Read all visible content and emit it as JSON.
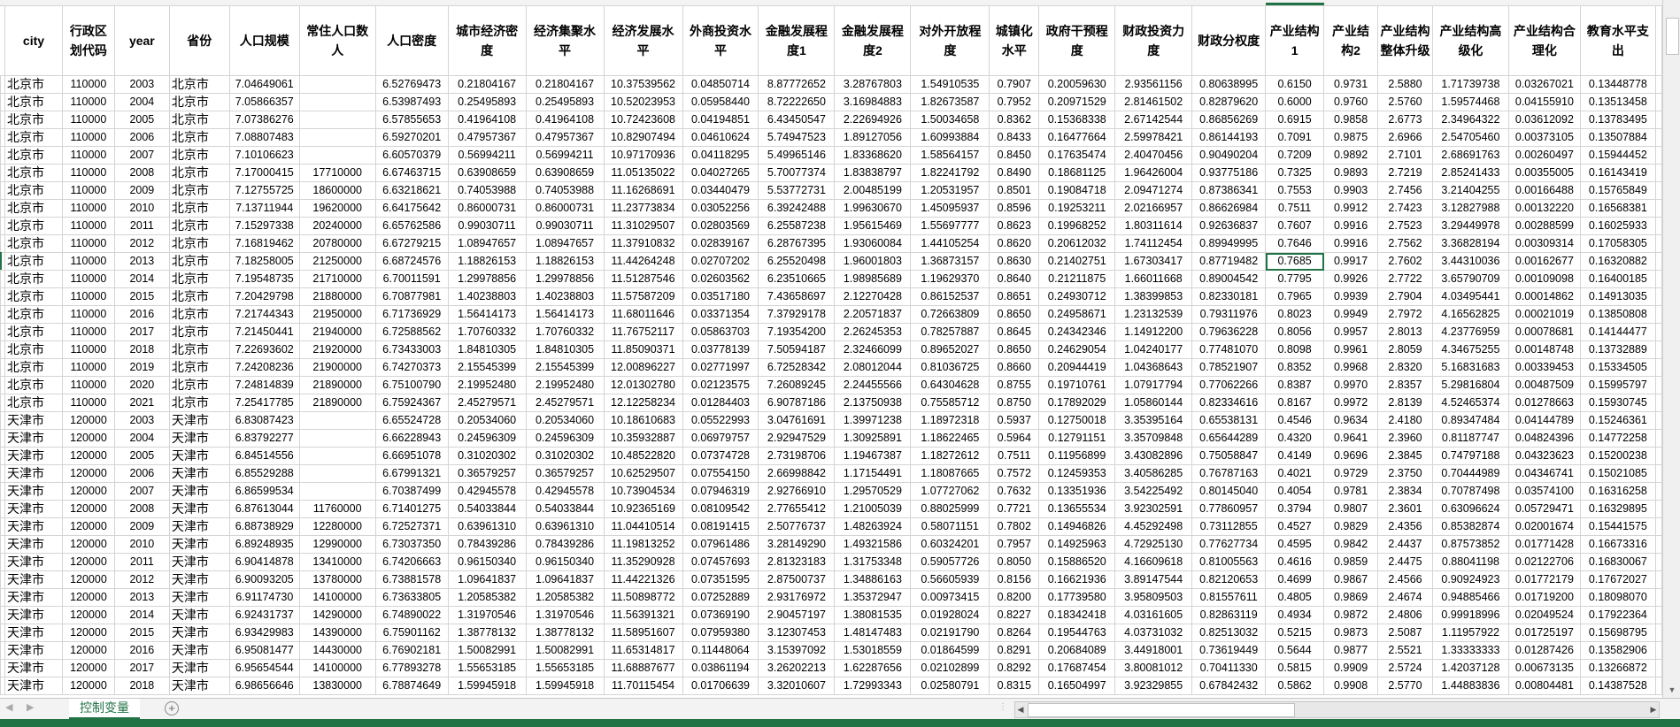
{
  "sheet_tab": "控制变量",
  "add_sheet": "+",
  "selected_cell": {
    "row": 10,
    "col": 18
  },
  "colors": {
    "accent": "#217346",
    "gridline": "#d4d4d4"
  },
  "headers": [
    "city",
    "行政区划代码",
    "year",
    "省份",
    "人口规模",
    "常住人口数人",
    "人口密度",
    "城市经济密度",
    "经济集聚水平",
    "经济发展水平",
    "外商投资水平",
    "金融发展程度1",
    "金融发展程度2",
    "对外开放程度",
    "城镇化水平",
    "政府干预程度",
    "财政投资力度",
    "财政分权度",
    "产业结构1",
    "产业结构2",
    "产业结构整体升级",
    "产业结构高级化",
    "产业结构合理化",
    "教育水平支出"
  ],
  "rows": [
    [
      "北京市",
      "110000",
      "2003",
      "北京市",
      "7.04649061",
      "",
      "6.52769473",
      "0.21804167",
      "0.21804167",
      "10.37539562",
      "0.04850714",
      "8.87772652",
      "3.28767803",
      "1.54910535",
      "0.7907",
      "0.20059630",
      "2.93561156",
      "0.80638995",
      "0.6150",
      "0.9731",
      "2.5880",
      "1.71739738",
      "0.03267021",
      "0.13448778"
    ],
    [
      "北京市",
      "110000",
      "2004",
      "北京市",
      "7.05866357",
      "",
      "6.53987493",
      "0.25495893",
      "0.25495893",
      "10.52023953",
      "0.05958440",
      "8.72222650",
      "3.16984883",
      "1.82673587",
      "0.7952",
      "0.20971529",
      "2.81461502",
      "0.82879620",
      "0.6000",
      "0.9760",
      "2.5760",
      "1.59574468",
      "0.04155910",
      "0.13513458"
    ],
    [
      "北京市",
      "110000",
      "2005",
      "北京市",
      "7.07386276",
      "",
      "6.57855653",
      "0.41964108",
      "0.41964108",
      "10.72423608",
      "0.04194851",
      "6.43450547",
      "2.22694926",
      "1.50034658",
      "0.8362",
      "0.15368338",
      "2.67142544",
      "0.86856269",
      "0.6915",
      "0.9858",
      "2.6773",
      "2.34964322",
      "0.03612092",
      "0.13783495"
    ],
    [
      "北京市",
      "110000",
      "2006",
      "北京市",
      "7.08807483",
      "",
      "6.59270201",
      "0.47957367",
      "0.47957367",
      "10.82907494",
      "0.04610624",
      "5.74947523",
      "1.89127056",
      "1.60993884",
      "0.8433",
      "0.16477664",
      "2.59978421",
      "0.86144193",
      "0.7091",
      "0.9875",
      "2.6966",
      "2.54705460",
      "0.00373105",
      "0.13507884"
    ],
    [
      "北京市",
      "110000",
      "2007",
      "北京市",
      "7.10106623",
      "",
      "6.60570379",
      "0.56994211",
      "0.56994211",
      "10.97170936",
      "0.04118295",
      "5.49965146",
      "1.83368620",
      "1.58564157",
      "0.8450",
      "0.17635474",
      "2.40470456",
      "0.90490204",
      "0.7209",
      "0.9892",
      "2.7101",
      "2.68691763",
      "0.00260497",
      "0.15944452"
    ],
    [
      "北京市",
      "110000",
      "2008",
      "北京市",
      "7.17000415",
      "17710000",
      "6.67463715",
      "0.63908659",
      "0.63908659",
      "11.05135022",
      "0.04027265",
      "5.70077374",
      "1.83838797",
      "1.82241792",
      "0.8490",
      "0.18681125",
      "1.96426004",
      "0.93775186",
      "0.7325",
      "0.9893",
      "2.7219",
      "2.85241433",
      "0.00355005",
      "0.16143419"
    ],
    [
      "北京市",
      "110000",
      "2009",
      "北京市",
      "7.12755725",
      "18600000",
      "6.63218621",
      "0.74053988",
      "0.74053988",
      "11.16268691",
      "0.03440479",
      "5.53772731",
      "2.00485199",
      "1.20531957",
      "0.8501",
      "0.19084718",
      "2.09471274",
      "0.87386341",
      "0.7553",
      "0.9903",
      "2.7456",
      "3.21404255",
      "0.00166488",
      "0.15765849"
    ],
    [
      "北京市",
      "110000",
      "2010",
      "北京市",
      "7.13711944",
      "19620000",
      "6.64175642",
      "0.86000731",
      "0.86000731",
      "11.23773834",
      "0.03052256",
      "6.39242488",
      "1.99630670",
      "1.45095937",
      "0.8596",
      "0.19253211",
      "2.02166957",
      "0.86626984",
      "0.7511",
      "0.9912",
      "2.7423",
      "3.12827988",
      "0.00132220",
      "0.16568381"
    ],
    [
      "北京市",
      "110000",
      "2011",
      "北京市",
      "7.15297338",
      "20240000",
      "6.65762586",
      "0.99030711",
      "0.99030711",
      "11.31029507",
      "0.02803569",
      "6.25587238",
      "1.95615469",
      "1.55697777",
      "0.8623",
      "0.19968252",
      "1.80311614",
      "0.92636837",
      "0.7607",
      "0.9916",
      "2.7523",
      "3.29449978",
      "0.00288599",
      "0.16025933"
    ],
    [
      "北京市",
      "110000",
      "2012",
      "北京市",
      "7.16819462",
      "20780000",
      "6.67279215",
      "1.08947657",
      "1.08947657",
      "11.37910832",
      "0.02839167",
      "6.28767395",
      "1.93060084",
      "1.44105254",
      "0.8620",
      "0.20612032",
      "1.74112454",
      "0.89949995",
      "0.7646",
      "0.9916",
      "2.7562",
      "3.36828194",
      "0.00309314",
      "0.17058305"
    ],
    [
      "北京市",
      "110000",
      "2013",
      "北京市",
      "7.18258005",
      "21250000",
      "6.68724576",
      "1.18826153",
      "1.18826153",
      "11.44264248",
      "0.02707202",
      "6.25520498",
      "1.96001803",
      "1.36873157",
      "0.8630",
      "0.21402751",
      "1.67303417",
      "0.87719482",
      "0.7685",
      "0.9917",
      "2.7602",
      "3.44310036",
      "0.00162677",
      "0.16320882"
    ],
    [
      "北京市",
      "110000",
      "2014",
      "北京市",
      "7.19548735",
      "21710000",
      "6.70011591",
      "1.29978856",
      "1.29978856",
      "11.51287546",
      "0.02603562",
      "6.23510665",
      "1.98985689",
      "1.19629370",
      "0.8640",
      "0.21211875",
      "1.66011668",
      "0.89004542",
      "0.7795",
      "0.9926",
      "2.7722",
      "3.65790709",
      "0.00109098",
      "0.16400185"
    ],
    [
      "北京市",
      "110000",
      "2015",
      "北京市",
      "7.20429798",
      "21880000",
      "6.70877981",
      "1.40238803",
      "1.40238803",
      "11.57587209",
      "0.03517180",
      "7.43658697",
      "2.12270428",
      "0.86152537",
      "0.8651",
      "0.24930712",
      "1.38399853",
      "0.82330181",
      "0.7965",
      "0.9939",
      "2.7904",
      "4.03495441",
      "0.00014862",
      "0.14913035"
    ],
    [
      "北京市",
      "110000",
      "2016",
      "北京市",
      "7.21744343",
      "21950000",
      "6.71736929",
      "1.56414173",
      "1.56414173",
      "11.68011646",
      "0.03371354",
      "7.37929178",
      "2.20571837",
      "0.72663809",
      "0.8650",
      "0.24958671",
      "1.23132539",
      "0.79311976",
      "0.8023",
      "0.9949",
      "2.7972",
      "4.16562825",
      "0.00021019",
      "0.13850808"
    ],
    [
      "北京市",
      "110000",
      "2017",
      "北京市",
      "7.21450441",
      "21940000",
      "6.72588562",
      "1.70760332",
      "1.70760332",
      "11.76752117",
      "0.05863703",
      "7.19354200",
      "2.26245353",
      "0.78257887",
      "0.8645",
      "0.24342346",
      "1.14912200",
      "0.79636228",
      "0.8056",
      "0.9957",
      "2.8013",
      "4.23776959",
      "0.00078681",
      "0.14144477"
    ],
    [
      "北京市",
      "110000",
      "2018",
      "北京市",
      "7.22693602",
      "21920000",
      "6.73433003",
      "1.84810305",
      "1.84810305",
      "11.85090371",
      "0.03778139",
      "7.50594187",
      "2.32466099",
      "0.89652027",
      "0.8650",
      "0.24629054",
      "1.04240177",
      "0.77481070",
      "0.8098",
      "0.9961",
      "2.8059",
      "4.34675255",
      "0.00148748",
      "0.13732889"
    ],
    [
      "北京市",
      "110000",
      "2019",
      "北京市",
      "7.24208236",
      "21900000",
      "6.74270373",
      "2.15545399",
      "2.15545399",
      "12.00896227",
      "0.02771997",
      "6.72528342",
      "2.08012044",
      "0.81036725",
      "0.8660",
      "0.20944419",
      "1.04368643",
      "0.78521907",
      "0.8352",
      "0.9968",
      "2.8320",
      "5.16831683",
      "0.00339453",
      "0.15334505"
    ],
    [
      "北京市",
      "110000",
      "2020",
      "北京市",
      "7.24814839",
      "21890000",
      "6.75100790",
      "2.19952480",
      "2.19952480",
      "12.01302780",
      "0.02123575",
      "7.26089245",
      "2.24455566",
      "0.64304628",
      "0.8755",
      "0.19710761",
      "1.07917794",
      "0.77062266",
      "0.8387",
      "0.9970",
      "2.8357",
      "5.29816804",
      "0.00487509",
      "0.15995797"
    ],
    [
      "北京市",
      "110000",
      "2021",
      "北京市",
      "7.25417785",
      "21890000",
      "6.75924367",
      "2.45279571",
      "2.45279571",
      "12.12258234",
      "0.01284403",
      "6.90787186",
      "2.13750938",
      "0.75585712",
      "0.8750",
      "0.17892029",
      "1.05860144",
      "0.82334616",
      "0.8167",
      "0.9972",
      "2.8139",
      "4.52465374",
      "0.01278663",
      "0.15930745"
    ],
    [
      "天津市",
      "120000",
      "2003",
      "天津市",
      "6.83087423",
      "",
      "6.65524728",
      "0.20534060",
      "0.20534060",
      "10.18610683",
      "0.05522993",
      "3.04761691",
      "1.39971238",
      "1.18972318",
      "0.5937",
      "0.12750018",
      "3.35395164",
      "0.65538131",
      "0.4546",
      "0.9634",
      "2.4180",
      "0.89347484",
      "0.04144789",
      "0.15246361"
    ],
    [
      "天津市",
      "120000",
      "2004",
      "天津市",
      "6.83792277",
      "",
      "6.66228943",
      "0.24596309",
      "0.24596309",
      "10.35932887",
      "0.06979757",
      "2.92947529",
      "1.30925891",
      "1.18622465",
      "0.5964",
      "0.12791151",
      "3.35709848",
      "0.65644289",
      "0.4320",
      "0.9641",
      "2.3960",
      "0.81187747",
      "0.04824396",
      "0.14772258"
    ],
    [
      "天津市",
      "120000",
      "2005",
      "天津市",
      "6.84514556",
      "",
      "6.66951078",
      "0.31020302",
      "0.31020302",
      "10.48522820",
      "0.07374728",
      "2.73198706",
      "1.19467387",
      "1.18272612",
      "0.7511",
      "0.11956899",
      "3.43082896",
      "0.75058847",
      "0.4149",
      "0.9696",
      "2.3845",
      "0.74797188",
      "0.04323623",
      "0.15200238"
    ],
    [
      "天津市",
      "120000",
      "2006",
      "天津市",
      "6.85529288",
      "",
      "6.67991321",
      "0.36579257",
      "0.36579257",
      "10.62529507",
      "0.07554150",
      "2.66998842",
      "1.17154491",
      "1.18087665",
      "0.7572",
      "0.12459353",
      "3.40586285",
      "0.76787163",
      "0.4021",
      "0.9729",
      "2.3750",
      "0.70444989",
      "0.04346741",
      "0.15021085"
    ],
    [
      "天津市",
      "120000",
      "2007",
      "天津市",
      "6.86599534",
      "",
      "6.70387499",
      "0.42945578",
      "0.42945578",
      "10.73904534",
      "0.07946319",
      "2.92766910",
      "1.29570529",
      "1.07727062",
      "0.7632",
      "0.13351936",
      "3.54225492",
      "0.80145040",
      "0.4054",
      "0.9781",
      "2.3834",
      "0.70787498",
      "0.03574100",
      "0.16316258"
    ],
    [
      "天津市",
      "120000",
      "2008",
      "天津市",
      "6.87613044",
      "11760000",
      "6.71401275",
      "0.54033844",
      "0.54033844",
      "10.92365169",
      "0.08109542",
      "2.77655412",
      "1.21005039",
      "0.88025999",
      "0.7721",
      "0.13655534",
      "3.92302591",
      "0.77860957",
      "0.3794",
      "0.9807",
      "2.3601",
      "0.63096624",
      "0.05729471",
      "0.16329895"
    ],
    [
      "天津市",
      "120000",
      "2009",
      "天津市",
      "6.88738929",
      "12280000",
      "6.72527371",
      "0.63961310",
      "0.63961310",
      "11.04410514",
      "0.08191415",
      "2.50776737",
      "1.48263924",
      "0.58071151",
      "0.7802",
      "0.14946826",
      "4.45292498",
      "0.73112855",
      "0.4527",
      "0.9829",
      "2.4356",
      "0.85382874",
      "0.02001674",
      "0.15441575"
    ],
    [
      "天津市",
      "120000",
      "2010",
      "天津市",
      "6.89248935",
      "12990000",
      "6.73037350",
      "0.78439286",
      "0.78439286",
      "11.19813252",
      "0.07961486",
      "3.28149290",
      "1.49321586",
      "0.60324201",
      "0.7957",
      "0.14925963",
      "4.72925130",
      "0.77627734",
      "0.4595",
      "0.9842",
      "2.4437",
      "0.87573852",
      "0.01771428",
      "0.16673316"
    ],
    [
      "天津市",
      "120000",
      "2011",
      "天津市",
      "6.90414878",
      "13410000",
      "6.74206663",
      "0.96150340",
      "0.96150340",
      "11.35290928",
      "0.07457693",
      "2.81323183",
      "1.31753348",
      "0.59057726",
      "0.8050",
      "0.15886520",
      "4.16609618",
      "0.81005563",
      "0.4616",
      "0.9859",
      "2.4475",
      "0.88041198",
      "0.02122706",
      "0.16830067"
    ],
    [
      "天津市",
      "120000",
      "2012",
      "天津市",
      "6.90093205",
      "13780000",
      "6.73881578",
      "1.09641837",
      "1.09641837",
      "11.44221326",
      "0.07351595",
      "2.87500737",
      "1.34886163",
      "0.56605939",
      "0.8156",
      "0.16621936",
      "3.89147544",
      "0.82120653",
      "0.4699",
      "0.9867",
      "2.4566",
      "0.90924923",
      "0.01772179",
      "0.17672027"
    ],
    [
      "天津市",
      "120000",
      "2013",
      "天津市",
      "6.91174730",
      "14100000",
      "6.73633805",
      "1.20585382",
      "1.20585382",
      "11.50898772",
      "0.07252889",
      "2.93176972",
      "1.35372947",
      "0.00973415",
      "0.8200",
      "0.17739580",
      "3.95809503",
      "0.81557611",
      "0.4805",
      "0.9869",
      "2.4674",
      "0.94885466",
      "0.01719200",
      "0.18098070"
    ],
    [
      "天津市",
      "120000",
      "2014",
      "天津市",
      "6.92431737",
      "14290000",
      "6.74890022",
      "1.31970546",
      "1.31970546",
      "11.56391321",
      "0.07369190",
      "2.90457197",
      "1.38081535",
      "0.01928024",
      "0.8227",
      "0.18342418",
      "4.03161605",
      "0.82863119",
      "0.4934",
      "0.9872",
      "2.4806",
      "0.99918996",
      "0.02049524",
      "0.17922364"
    ],
    [
      "天津市",
      "120000",
      "2015",
      "天津市",
      "6.93429983",
      "14390000",
      "6.75901162",
      "1.38778132",
      "1.38778132",
      "11.58951607",
      "0.07959380",
      "3.12307453",
      "1.48147483",
      "0.02191790",
      "0.8264",
      "0.19544763",
      "4.03731032",
      "0.82513032",
      "0.5215",
      "0.9873",
      "2.5087",
      "1.11957922",
      "0.01725197",
      "0.15698795"
    ],
    [
      "天津市",
      "120000",
      "2016",
      "天津市",
      "6.95081477",
      "14430000",
      "6.76902181",
      "1.50082991",
      "1.50082991",
      "11.65314817",
      "0.11448064",
      "3.15397092",
      "1.53018559",
      "0.01864599",
      "0.8291",
      "0.20684089",
      "3.44918001",
      "0.73619449",
      "0.5644",
      "0.9877",
      "2.5521",
      "1.33333333",
      "0.01287426",
      "0.13582906"
    ],
    [
      "天津市",
      "120000",
      "2017",
      "天津市",
      "6.95654544",
      "14100000",
      "6.77893278",
      "1.55653185",
      "1.55653185",
      "11.68887677",
      "0.03861194",
      "3.26202213",
      "1.62287656",
      "0.02102899",
      "0.8292",
      "0.17687454",
      "3.80081012",
      "0.70411330",
      "0.5815",
      "0.9909",
      "2.5724",
      "1.42037128",
      "0.00673135",
      "0.13266872"
    ],
    [
      "天津市",
      "120000",
      "2018",
      "天津市",
      "6.98656646",
      "13830000",
      "6.78874649",
      "1.59945918",
      "1.59945918",
      "11.70115454",
      "0.01706639",
      "3.32010607",
      "1.72993343",
      "0.02580791",
      "0.8315",
      "0.16504997",
      "3.92329855",
      "0.67842432",
      "0.5862",
      "0.9908",
      "2.5770",
      "1.44883836",
      "0.00804481",
      "0.14387528"
    ]
  ]
}
